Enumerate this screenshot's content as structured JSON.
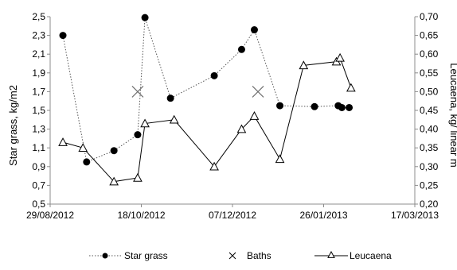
{
  "chart_data": {
    "type": "line",
    "title": "",
    "xlabel": "",
    "ylabel": "Star grass, kg/m2",
    "y2label": "Leucaena, kg/ linear m",
    "x_ticks": [
      "29/08/2012",
      "18/10/2012",
      "07/12/2012",
      "26/01/2013",
      "17/03/2013"
    ],
    "y_ticks": [
      "0,5",
      "0,7",
      "0,9",
      "1,1",
      "1,3",
      "1,5",
      "1,7",
      "1,9",
      "2,1",
      "2,3",
      "2,5"
    ],
    "y2_ticks": [
      "0,20",
      "0,25",
      "0,30",
      "0,35",
      "0,40",
      "0,45",
      "0,50",
      "0,55",
      "0,60",
      "0,65",
      "0,70"
    ],
    "x_range": [
      "2012-08-29",
      "2013-03-17"
    ],
    "ylim": [
      0.5,
      2.5
    ],
    "y2lim": [
      0.2,
      0.7
    ],
    "grid": false,
    "legend_position": "bottom",
    "series": [
      {
        "name": "Star grass",
        "axis": "left",
        "style": "dotted-line-filled-circle",
        "color": "#000000",
        "points": [
          [
            "2012-09-05",
            2.3
          ],
          [
            "2012-09-18",
            0.95
          ],
          [
            "2012-10-03",
            1.07
          ],
          [
            "2012-10-16",
            1.24
          ],
          [
            "2012-10-20",
            2.49
          ],
          [
            "2012-11-03",
            1.63
          ],
          [
            "2012-11-27",
            1.87
          ],
          [
            "2012-12-12",
            2.15
          ],
          [
            "2012-12-19",
            2.36
          ],
          [
            "2013-01-02",
            1.55
          ],
          [
            "2013-01-21",
            1.54
          ],
          [
            "2013-02-03",
            1.55
          ],
          [
            "2013-02-05",
            1.53
          ],
          [
            "2013-02-09",
            1.53
          ]
        ]
      },
      {
        "name": "Baths",
        "axis": "left",
        "style": "x-marker",
        "color": "#707070",
        "points": [
          [
            "2012-10-16",
            1.7
          ],
          [
            "2012-12-21",
            1.7
          ]
        ]
      },
      {
        "name": "Leucaena",
        "axis": "right",
        "style": "solid-line-open-triangle",
        "color": "#000000",
        "points": [
          [
            "2012-09-05",
            0.365
          ],
          [
            "2012-09-16",
            0.35
          ],
          [
            "2012-10-03",
            0.26
          ],
          [
            "2012-10-16",
            0.27
          ],
          [
            "2012-10-20",
            0.415
          ],
          [
            "2012-11-05",
            0.425
          ],
          [
            "2012-11-27",
            0.3
          ],
          [
            "2012-12-12",
            0.4
          ],
          [
            "2012-12-19",
            0.435
          ],
          [
            "2013-01-02",
            0.32
          ],
          [
            "2013-01-15",
            0.57
          ],
          [
            "2013-02-02",
            0.58
          ],
          [
            "2013-02-04",
            0.59
          ],
          [
            "2013-02-10",
            0.51
          ]
        ]
      }
    ]
  }
}
